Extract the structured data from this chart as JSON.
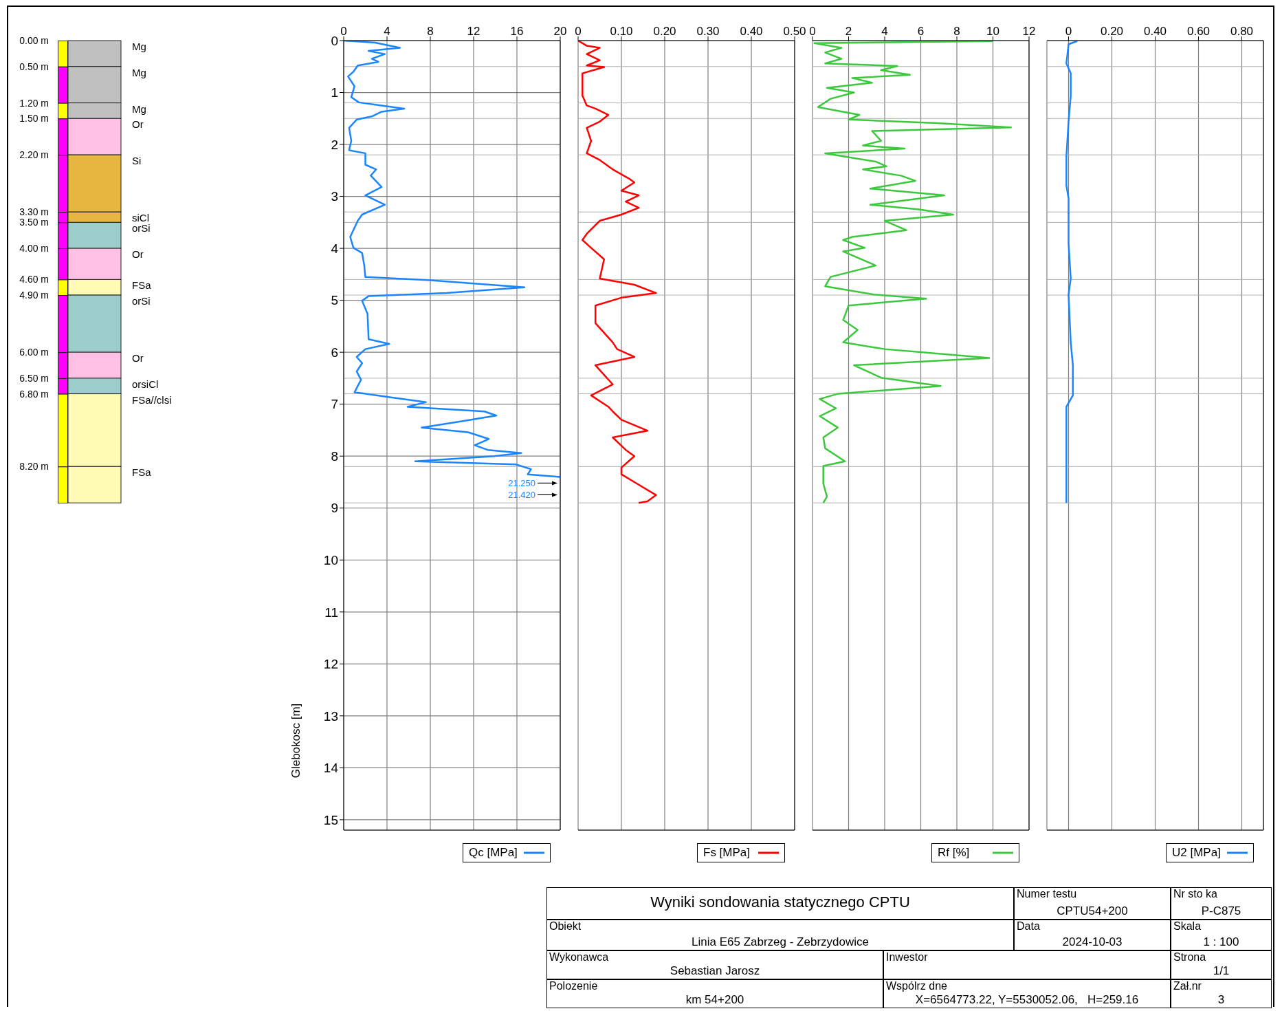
{
  "chart_data": [
    {
      "type": "bar",
      "stacked": true,
      "categories": [
        null
      ],
      "ylim": [
        8.9,
        0
      ],
      "tick_labels": "y",
      "yticks": [
        {
          "value": 0,
          "label": "0.00 m"
        },
        {
          "value": 0.5,
          "label": "0.50 m"
        },
        {
          "value": 1.2,
          "label": "1.20 m"
        },
        {
          "value": 1.5,
          "label": "1.50 m"
        },
        {
          "value": 2.2,
          "label": "2.20 m"
        },
        {
          "value": 3.3,
          "label": "3.30 m"
        },
        {
          "value": 3.5,
          "label": "3.50 m"
        },
        {
          "value": 4.0,
          "label": "4.00 m"
        },
        {
          "value": 4.6,
          "label": "4.60 m"
        },
        {
          "value": 4.9,
          "label": "4.90 m"
        },
        {
          "value": 6.0,
          "label": "6.00 m"
        },
        {
          "value": 6.5,
          "label": "6.50 m"
        },
        {
          "value": 6.8,
          "label": "6.80 m"
        },
        {
          "value": 8.2,
          "label": "8.20 m"
        }
      ],
      "series": [
        {
          "name": "Mg",
          "color": "#c0c0c0",
          "values": [
            0.5
          ]
        },
        {
          "name": "Mg",
          "color": "#c0c0c0",
          "values": [
            0.7
          ]
        },
        {
          "name": "Mg",
          "color": "#c0c0c0",
          "values": [
            0.3
          ]
        },
        {
          "name": "Or",
          "color": "#ffc0e6",
          "values": [
            0.7
          ]
        },
        {
          "name": "Si",
          "color": "#e6b640",
          "values": [
            1.1
          ]
        },
        {
          "name": "siCl",
          "color": "#e6b640",
          "values": [
            0.2
          ]
        },
        {
          "name": "orSi",
          "color": "#9ccccc",
          "values": [
            0.5
          ]
        },
        {
          "name": "Or",
          "color": "#ffc0e6",
          "values": [
            0.6
          ]
        },
        {
          "name": "FSa",
          "color": "#fffab4",
          "values": [
            0.3
          ]
        },
        {
          "name": "orSi",
          "color": "#9ccccc",
          "values": [
            1.1
          ]
        },
        {
          "name": "Or",
          "color": "#ffc0e6",
          "values": [
            0.5
          ]
        },
        {
          "name": "orsiCl",
          "color": "#9ccccc",
          "values": [
            0.3
          ]
        },
        {
          "name": "FSa//clsi",
          "color": "#fffab4",
          "values": [
            1.4
          ]
        },
        {
          "name": "FSa",
          "color": "#fffab4",
          "values": [
            0.7
          ]
        }
      ]
    },
    {
      "type": "line",
      "ylabel": "Glebokosc [m]",
      "xlim": [
        0,
        20
      ],
      "xticks": [
        0,
        4,
        8,
        12,
        16,
        20
      ],
      "ylim": [
        15.2,
        0
      ],
      "yticks": [
        0,
        1,
        2,
        3,
        4,
        5,
        6,
        7,
        8,
        9,
        10,
        11,
        12,
        13,
        14,
        15
      ],
      "grid": true,
      "legend": "bottom",
      "ref_lines": [
        {
          "axis": "y",
          "value": 0.5,
          "color": "#b0b0b0"
        },
        {
          "axis": "y",
          "value": 1.2,
          "color": "#b0b0b0"
        },
        {
          "axis": "y",
          "value": 1.5,
          "color": "#b0b0b0"
        },
        {
          "axis": "y",
          "value": 2.2,
          "color": "#b0b0b0"
        },
        {
          "axis": "y",
          "value": 3.3,
          "color": "#b0b0b0"
        },
        {
          "axis": "y",
          "value": 3.5,
          "color": "#b0b0b0"
        },
        {
          "axis": "y",
          "value": 4.6,
          "color": "#b0b0b0"
        },
        {
          "axis": "y",
          "value": 4.9,
          "color": "#b0b0b0"
        },
        {
          "axis": "y",
          "value": 6.5,
          "color": "#b0b0b0"
        },
        {
          "axis": "y",
          "value": 6.8,
          "color": "#b0b0b0"
        },
        {
          "axis": "y",
          "value": 8.2,
          "color": "#b0b0b0"
        },
        {
          "axis": "y",
          "value": 8.9,
          "color": "#b0b0b0"
        }
      ],
      "annotations": [
        "21.250",
        "21.420"
      ],
      "series": [
        {
          "name": "Qc [MPa]",
          "color": "#1a85ff",
          "x": [
            0,
            2.9,
            5.2,
            2.3,
            3.8,
            2.6,
            3.2,
            1.3,
            0.9,
            0.4,
            1.0,
            0.7,
            1.4,
            3.5,
            5.6,
            3.5,
            2.6,
            1.2,
            0.5,
            0.7,
            0.5,
            2.0,
            2.0,
            3.0,
            2.5,
            3.5,
            2.0,
            3.8,
            1.7,
            1.3,
            0.6,
            0.9,
            1.7,
            1.9,
            2.0,
            7.8,
            16.7,
            9.5,
            2.3,
            1.7,
            2.2,
            2.3,
            4.2,
            2.0,
            1.2,
            1.7,
            1.2,
            1.6,
            1.0,
            4.0,
            7.6,
            5.9,
            13.0,
            14.1,
            10.9,
            7.2,
            11.5,
            13.4,
            12.1,
            13.3,
            16.4,
            13.9,
            6.6,
            15.9,
            17.3,
            17.0,
            20
          ],
          "values": [
            0,
            0.04,
            0.14,
            0.2,
            0.26,
            0.35,
            0.41,
            0.48,
            0.6,
            0.69,
            0.88,
            1.09,
            1.19,
            1.25,
            1.31,
            1.37,
            1.46,
            1.52,
            1.68,
            1.93,
            2.11,
            2.17,
            2.39,
            2.48,
            2.6,
            2.82,
            2.98,
            3.16,
            3.35,
            3.47,
            3.78,
            3.99,
            4.09,
            4.33,
            4.55,
            4.61,
            4.75,
            4.86,
            4.92,
            5.01,
            5.26,
            5.75,
            5.84,
            5.94,
            6.09,
            6.21,
            6.37,
            6.53,
            6.77,
            6.86,
            6.96,
            7.05,
            7.14,
            7.22,
            7.33,
            7.45,
            7.54,
            7.67,
            7.79,
            7.88,
            7.94,
            8.0,
            8.1,
            8.16,
            8.25,
            8.35,
            8.4
          ]
        }
      ]
    },
    {
      "type": "line",
      "xlim": [
        0,
        0.5
      ],
      "xticks": [
        0,
        {
          "value": 0.1,
          "label": "0.10"
        },
        {
          "value": 0.2,
          "label": "0.20"
        },
        {
          "value": 0.3,
          "label": "0.30"
        },
        {
          "value": 0.4,
          "label": "0.40"
        },
        {
          "value": 0.5,
          "label": "0.50"
        }
      ],
      "ylim": [
        15.2,
        0
      ],
      "yticks": [
        0,
        1,
        2,
        3,
        4,
        5,
        6,
        7,
        8,
        9,
        10,
        11,
        12,
        13,
        14,
        15
      ],
      "tick_labels": "x",
      "grid": true,
      "legend": "bottom",
      "ref_lines": [
        {
          "axis": "y",
          "value": 0.5,
          "color": "#b0b0b0"
        },
        {
          "axis": "y",
          "value": 1.2,
          "color": "#b0b0b0"
        },
        {
          "axis": "y",
          "value": 1.5,
          "color": "#b0b0b0"
        },
        {
          "axis": "y",
          "value": 2.2,
          "color": "#b0b0b0"
        },
        {
          "axis": "y",
          "value": 3.3,
          "color": "#b0b0b0"
        },
        {
          "axis": "y",
          "value": 3.5,
          "color": "#b0b0b0"
        },
        {
          "axis": "y",
          "value": 4.6,
          "color": "#b0b0b0"
        },
        {
          "axis": "y",
          "value": 4.9,
          "color": "#b0b0b0"
        },
        {
          "axis": "y",
          "value": 6.5,
          "color": "#b0b0b0"
        },
        {
          "axis": "y",
          "value": 6.8,
          "color": "#b0b0b0"
        },
        {
          "axis": "y",
          "value": 8.2,
          "color": "#b0b0b0"
        },
        {
          "axis": "y",
          "value": 8.9,
          "color": "#b0b0b0"
        }
      ],
      "series": [
        {
          "name": "Fs [MPa]",
          "color": "#ff0000",
          "x": [
            0,
            0.02,
            0.05,
            0.02,
            0.05,
            0.02,
            0.06,
            0.01,
            0.01,
            0.01,
            0.02,
            0.04,
            0.07,
            0.05,
            0.02,
            0.03,
            0.02,
            0.05,
            0.08,
            0.12,
            0.13,
            0.1,
            0.14,
            0.11,
            0.14,
            0.1,
            0.05,
            0.02,
            0.01,
            0.03,
            0.06,
            0.05,
            0.13,
            0.18,
            0.1,
            0.04,
            0.04,
            0.08,
            0.09,
            0.13,
            0.04,
            0.08,
            0.03,
            0.07,
            0.08,
            0.1,
            0.16,
            0.08,
            0.11,
            0.13,
            0.1,
            0.1,
            0.13,
            0.18,
            0.16,
            0.14
          ],
          "values": [
            0,
            0.1,
            0.14,
            0.26,
            0.38,
            0.48,
            0.51,
            0.63,
            0.88,
            1.06,
            1.25,
            1.31,
            1.43,
            1.56,
            1.68,
            1.93,
            2.17,
            2.3,
            2.48,
            2.67,
            2.73,
            2.89,
            2.98,
            3.1,
            3.22,
            3.35,
            3.47,
            3.72,
            3.84,
            3.99,
            4.21,
            4.58,
            4.7,
            4.86,
            4.95,
            5.1,
            5.44,
            5.81,
            5.94,
            6.09,
            6.25,
            6.62,
            6.83,
            7.05,
            7.14,
            7.3,
            7.51,
            7.64,
            7.88,
            8.0,
            8.22,
            8.35,
            8.5,
            8.75,
            8.87,
            8.9
          ]
        }
      ]
    },
    {
      "type": "line",
      "xlim": [
        0,
        12
      ],
      "xticks": [
        0,
        2,
        4,
        6,
        8,
        10,
        12
      ],
      "ylim": [
        15.2,
        0
      ],
      "yticks": [
        0,
        1,
        2,
        3,
        4,
        5,
        6,
        7,
        8,
        9,
        10,
        11,
        12,
        13,
        14,
        15
      ],
      "tick_labels": "x",
      "grid": true,
      "legend": "bottom",
      "ref_lines": [
        {
          "axis": "y",
          "value": 0.5,
          "color": "#b0b0b0"
        },
        {
          "axis": "y",
          "value": 1.2,
          "color": "#b0b0b0"
        },
        {
          "axis": "y",
          "value": 1.5,
          "color": "#b0b0b0"
        },
        {
          "axis": "y",
          "value": 2.2,
          "color": "#b0b0b0"
        },
        {
          "axis": "y",
          "value": 3.3,
          "color": "#b0b0b0"
        },
        {
          "axis": "y",
          "value": 3.5,
          "color": "#b0b0b0"
        },
        {
          "axis": "y",
          "value": 4.6,
          "color": "#b0b0b0"
        },
        {
          "axis": "y",
          "value": 4.9,
          "color": "#b0b0b0"
        },
        {
          "axis": "y",
          "value": 6.5,
          "color": "#b0b0b0"
        },
        {
          "axis": "y",
          "value": 6.8,
          "color": "#b0b0b0"
        },
        {
          "axis": "y",
          "value": 8.2,
          "color": "#b0b0b0"
        },
        {
          "axis": "y",
          "value": 8.9,
          "color": "#b0b0b0"
        }
      ],
      "series": [
        {
          "name": "Rf [%]",
          "color": "#3cc83c",
          "x": [
            10.0,
            0.1,
            1.6,
            0.7,
            1.6,
            0.7,
            4.7,
            3.8,
            5.4,
            2.2,
            3.3,
            0.8,
            2.3,
            1.0,
            0.3,
            2.6,
            2.0,
            6.9,
            11.0,
            3.3,
            3.8,
            2.8,
            5.1,
            0.7,
            3.5,
            4.1,
            2.8,
            4.9,
            5.7,
            3.2,
            7.3,
            3.2,
            5.9,
            7.8,
            4.0,
            5.2,
            2.2,
            1.7,
            2.9,
            1.7,
            3.5,
            1.0,
            0.7,
            3.4,
            6.3,
            2.0,
            1.7,
            2.5,
            1.7,
            4.0,
            9.8,
            2.3,
            3.8,
            7.1,
            1.4,
            0.4,
            1.3,
            0.4,
            1.4,
            0.6,
            0.7,
            1.8,
            0.6,
            0.6,
            0.8,
            0.6
          ],
          "values": [
            0.01,
            0.05,
            0.14,
            0.23,
            0.35,
            0.44,
            0.49,
            0.57,
            0.66,
            0.72,
            0.81,
            0.91,
            1.0,
            1.12,
            1.28,
            1.43,
            1.52,
            1.59,
            1.67,
            1.74,
            1.93,
            2.02,
            2.08,
            2.17,
            2.33,
            2.42,
            2.48,
            2.6,
            2.7,
            2.85,
            2.98,
            3.16,
            3.25,
            3.35,
            3.47,
            3.65,
            3.78,
            3.84,
            3.99,
            4.06,
            4.33,
            4.55,
            4.73,
            4.89,
            4.97,
            5.1,
            5.38,
            5.57,
            5.81,
            5.94,
            6.11,
            6.25,
            6.49,
            6.65,
            6.8,
            6.9,
            7.08,
            7.23,
            7.45,
            7.64,
            7.85,
            8.1,
            8.19,
            8.53,
            8.78,
            8.9
          ]
        }
      ]
    },
    {
      "type": "line",
      "xlim": [
        -0.1,
        0.9
      ],
      "xticks": [
        0,
        {
          "value": 0.2,
          "label": "0.20"
        },
        {
          "value": 0.4,
          "label": "0.40"
        },
        {
          "value": 0.6,
          "label": "0.60"
        },
        {
          "value": 0.8,
          "label": "0.80"
        }
      ],
      "ylim": [
        15.2,
        0
      ],
      "yticks": [
        0,
        1,
        2,
        3,
        4,
        5,
        6,
        7,
        8,
        9,
        10,
        11,
        12,
        13,
        14,
        15
      ],
      "tick_labels": "x",
      "grid": true,
      "legend": "bottom",
      "ref_lines": [
        {
          "axis": "y",
          "value": 0.5,
          "color": "#b0b0b0"
        },
        {
          "axis": "y",
          "value": 1.2,
          "color": "#b0b0b0"
        },
        {
          "axis": "y",
          "value": 1.5,
          "color": "#b0b0b0"
        },
        {
          "axis": "y",
          "value": 2.2,
          "color": "#b0b0b0"
        },
        {
          "axis": "y",
          "value": 3.3,
          "color": "#b0b0b0"
        },
        {
          "axis": "y",
          "value": 3.5,
          "color": "#b0b0b0"
        },
        {
          "axis": "y",
          "value": 4.6,
          "color": "#b0b0b0"
        },
        {
          "axis": "y",
          "value": 4.9,
          "color": "#b0b0b0"
        },
        {
          "axis": "y",
          "value": 6.5,
          "color": "#b0b0b0"
        },
        {
          "axis": "y",
          "value": 6.8,
          "color": "#b0b0b0"
        },
        {
          "axis": "y",
          "value": 8.2,
          "color": "#b0b0b0"
        },
        {
          "axis": "y",
          "value": 8.9,
          "color": "#b0b0b0"
        }
      ],
      "series": [
        {
          "name": "U2 [MPa]",
          "color": "#1a85ff",
          "x": [
            0.04,
            0,
            -0.01,
            0.01,
            0.01,
            0,
            -0.01,
            -0.01,
            0,
            0,
            0.01,
            0,
            0.01,
            0.02,
            0.02,
            -0.01,
            -0.01,
            -0.01,
            -0.01
          ],
          "values": [
            0.01,
            0.07,
            0.44,
            0.63,
            1.06,
            1.56,
            2.23,
            2.79,
            3.04,
            3.9,
            4.58,
            4.89,
            5.81,
            6.25,
            6.83,
            7.05,
            7.42,
            8.1,
            8.9
          ]
        }
      ]
    },
    {
      "type": "other",
      "title": "Wyniki sondowania statycznego CPTU",
      "annotations": [
        "Numer testu",
        "CPTU54+200",
        "Nr sto ka",
        "P-C875",
        "Obiekt",
        "Linia E65 Zabrzeg - Zebrzydowice",
        "Data",
        "2024-10-03",
        "Skala",
        "1 : 100",
        "Wykonawca",
        "Sebastian Jarosz",
        "Inwestor",
        "Strona",
        "1/1",
        "Polozenie",
        "km 54+200",
        "Wspólrz dne",
        "X=6564773.22, Y=5530052.06,   H=259.16",
        "Zał.nr",
        "3"
      ]
    }
  ]
}
